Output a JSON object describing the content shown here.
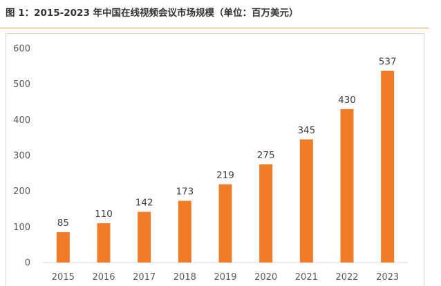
{
  "figure_title": "图 1：2015-2023 年中国在线视频会议市场规模（单位：百万美元）",
  "colors": {
    "bar": "#f07c2a",
    "axis": "#d9d9d9",
    "accent_rule": "#e59a4c"
  },
  "chart_data": {
    "type": "bar",
    "title": "",
    "xlabel": "",
    "ylabel": "",
    "categories": [
      "2015",
      "2016",
      "2017",
      "2018",
      "2019",
      "2020",
      "2021",
      "2022",
      "2023"
    ],
    "values": [
      85,
      110,
      142,
      173,
      219,
      275,
      345,
      430,
      537
    ],
    "ylim": [
      0,
      600
    ],
    "yticks": [
      0,
      100,
      200,
      300,
      400,
      500,
      600
    ],
    "data_labels": true,
    "grid": false,
    "legend": "none"
  }
}
